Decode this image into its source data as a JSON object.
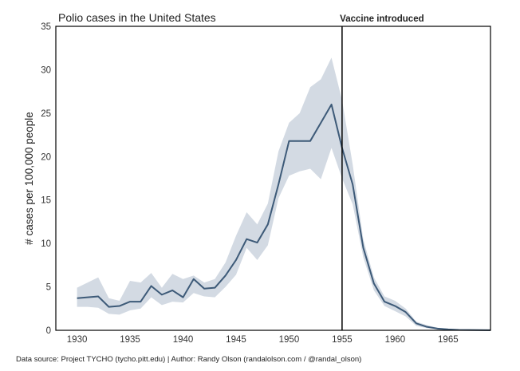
{
  "chart_data": {
    "type": "line",
    "title": "Polio cases in the United States",
    "xlabel": "",
    "ylabel": "# cases per 100,000 people",
    "xlim": [
      1928,
      1969
    ],
    "ylim": [
      0,
      35
    ],
    "xticks": [
      1930,
      1935,
      1940,
      1945,
      1950,
      1955,
      1960,
      1965
    ],
    "yticks": [
      0,
      5,
      10,
      15,
      20,
      25,
      30,
      35
    ],
    "grid": false,
    "line_color": "#3d5a78",
    "band_color": "#d3dae3",
    "series": [
      {
        "x": [
          1930,
          1931,
          1932,
          1933,
          1934,
          1935,
          1936,
          1937,
          1938,
          1939,
          1940,
          1941,
          1942,
          1943,
          1944,
          1945,
          1946,
          1947,
          1948,
          1949,
          1950,
          1951,
          1952,
          1953,
          1954,
          1955,
          1956,
          1957,
          1958,
          1959,
          1960,
          1961,
          1962,
          1963,
          1964,
          1965,
          1966,
          1967,
          1968,
          1969
        ],
        "values": [
          3.7,
          3.8,
          3.9,
          2.7,
          2.8,
          3.3,
          3.3,
          5.1,
          4.1,
          4.6,
          3.8,
          5.9,
          4.8,
          4.9,
          6.3,
          8.1,
          10.5,
          10.1,
          12.2,
          16.8,
          21.8,
          21.8,
          21.8,
          23.9,
          26.0,
          21.0,
          16.8,
          9.5,
          5.4,
          3.3,
          2.8,
          2.1,
          0.8,
          0.4,
          0.2,
          0.1,
          0.05,
          0.03,
          0.02,
          0.01
        ],
        "lower": [
          2.7,
          2.7,
          2.6,
          1.9,
          1.8,
          2.3,
          2.5,
          3.8,
          2.9,
          3.3,
          3.2,
          4.3,
          3.9,
          3.8,
          5.0,
          6.4,
          9.5,
          8.1,
          9.8,
          15.2,
          17.8,
          18.3,
          18.6,
          17.4,
          21.0,
          17.5,
          14.5,
          8.4,
          4.6,
          2.8,
          2.2,
          1.6,
          0.5,
          0.25,
          0.1,
          0.05,
          0.02,
          0.01,
          0.0,
          0.0
        ],
        "upper": [
          4.9,
          5.5,
          6.1,
          3.7,
          3.4,
          5.7,
          5.5,
          6.6,
          4.9,
          6.5,
          5.9,
          6.3,
          5.5,
          5.9,
          7.8,
          10.9,
          13.6,
          12.2,
          14.6,
          20.6,
          23.9,
          25.0,
          28.0,
          28.9,
          31.4,
          26.5,
          19.1,
          10.5,
          6.1,
          3.9,
          3.4,
          2.5,
          1.0,
          0.6,
          0.3,
          0.2,
          0.1,
          0.07,
          0.05,
          0.03
        ]
      }
    ],
    "annotation": {
      "text": "Vaccine introduced",
      "x": 1955
    }
  },
  "source_text": "Data source: Project TYCHO (tycho.pitt.edu) | Author: Randy Olson (randalolson.com / @randal_olson)"
}
